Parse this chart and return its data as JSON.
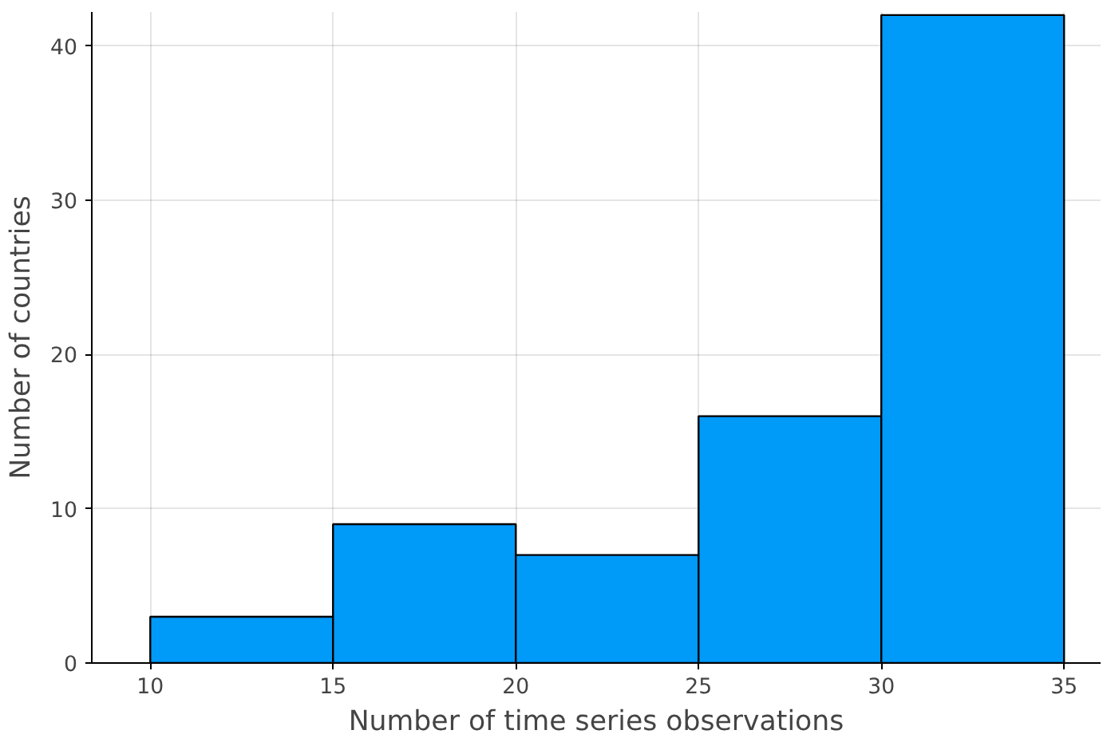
{
  "chart_data": {
    "type": "histogram",
    "xlabel": "Number of time series observations",
    "ylabel": "Number of countries",
    "bins": [
      10,
      15,
      20,
      25,
      30,
      35
    ],
    "values": [
      3,
      9,
      7,
      16,
      42
    ],
    "color": "#009af9",
    "xlim": [
      8.4,
      36
    ],
    "ylim": [
      0,
      42.2
    ],
    "xticks": [
      10,
      15,
      20,
      25,
      30,
      35
    ],
    "yticks": [
      0,
      10,
      20,
      30,
      40
    ],
    "grid": true
  }
}
